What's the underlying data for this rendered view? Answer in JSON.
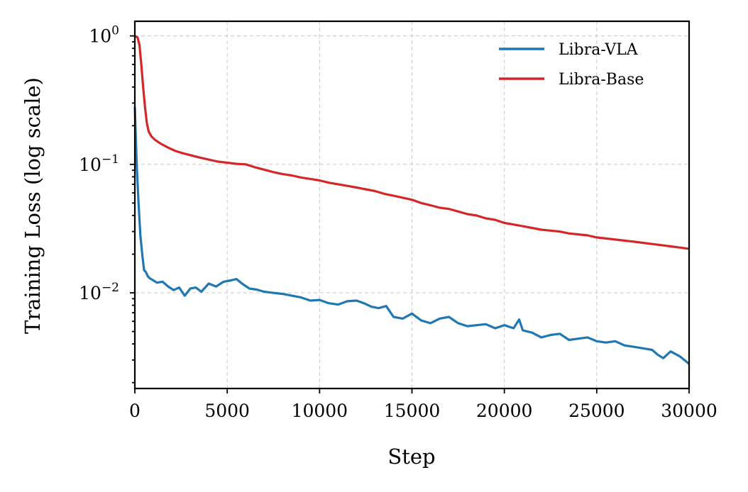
{
  "chart_data": {
    "type": "line",
    "xlabel": "Step",
    "ylabel": "Training Loss (log scale)",
    "xlim": [
      0,
      30000
    ],
    "ylim": [
      0.0018,
      1.3
    ],
    "yscale": "log",
    "grid": true,
    "legend_position": "top-right",
    "x_ticks": [
      0,
      5000,
      10000,
      15000,
      20000,
      25000,
      30000
    ],
    "y_ticks": [
      {
        "value": 1,
        "base": "10",
        "exp": "0"
      },
      {
        "value": 0.1,
        "base": "10",
        "exp": "−1"
      },
      {
        "value": 0.01,
        "base": "10",
        "exp": "−2"
      }
    ],
    "series": [
      {
        "name": "Libra-VLA",
        "color": "#1f77b4",
        "x": [
          0,
          100,
          200,
          300,
          400,
          500,
          600,
          700,
          800,
          1000,
          1200,
          1500,
          1800,
          2100,
          2400,
          2700,
          3000,
          3300,
          3600,
          4000,
          4400,
          4800,
          5200,
          5500,
          5800,
          6200,
          6600,
          7000,
          7500,
          8000,
          8500,
          9000,
          9500,
          10000,
          10500,
          11000,
          11500,
          12000,
          12400,
          12800,
          13200,
          13600,
          14000,
          14500,
          15000,
          15500,
          16000,
          16500,
          17000,
          17500,
          18000,
          18500,
          19000,
          19500,
          20000,
          20500,
          20800,
          21000,
          21500,
          22000,
          22500,
          23000,
          23500,
          24000,
          24500,
          25000,
          25500,
          26000,
          26500,
          27000,
          27500,
          28000,
          28300,
          28600,
          29000,
          29500,
          30000
        ],
        "y": [
          0.28,
          0.1,
          0.05,
          0.028,
          0.02,
          0.015,
          0.0145,
          0.0135,
          0.013,
          0.0125,
          0.012,
          0.0122,
          0.0112,
          0.0105,
          0.011,
          0.0095,
          0.0108,
          0.011,
          0.0102,
          0.0118,
          0.0112,
          0.0122,
          0.0125,
          0.0128,
          0.0118,
          0.0108,
          0.0106,
          0.0102,
          0.01,
          0.0098,
          0.0095,
          0.0092,
          0.0087,
          0.0088,
          0.0083,
          0.0081,
          0.0086,
          0.0087,
          0.0083,
          0.0078,
          0.0076,
          0.0079,
          0.0065,
          0.0063,
          0.0069,
          0.0061,
          0.0058,
          0.0063,
          0.0065,
          0.0058,
          0.0055,
          0.0056,
          0.0057,
          0.0053,
          0.0056,
          0.0053,
          0.0062,
          0.0051,
          0.0049,
          0.0045,
          0.0047,
          0.0048,
          0.0043,
          0.0044,
          0.0045,
          0.0042,
          0.0041,
          0.0042,
          0.0039,
          0.0038,
          0.0037,
          0.0036,
          0.0033,
          0.0031,
          0.0035,
          0.0032,
          0.0028
        ]
      },
      {
        "name": "Libra-Base",
        "color": "#d62728",
        "x": [
          0,
          150,
          250,
          350,
          450,
          550,
          650,
          750,
          900,
          1100,
          1400,
          1800,
          2200,
          2600,
          3000,
          3500,
          4000,
          4500,
          5000,
          5500,
          6000,
          6500,
          7000,
          7500,
          8000,
          8500,
          9000,
          9500,
          10000,
          10500,
          11000,
          11500,
          12000,
          12500,
          13000,
          13500,
          14000,
          14500,
          15000,
          15500,
          16000,
          16500,
          17000,
          17500,
          18000,
          18500,
          19000,
          19500,
          20000,
          20500,
          21000,
          21500,
          22000,
          22500,
          23000,
          23500,
          24000,
          24500,
          25000,
          25500,
          26000,
          26500,
          27000,
          27500,
          28000,
          28500,
          29000,
          29500,
          30000
        ],
        "y": [
          1.0,
          0.97,
          0.85,
          0.6,
          0.4,
          0.28,
          0.21,
          0.18,
          0.165,
          0.155,
          0.145,
          0.135,
          0.127,
          0.122,
          0.118,
          0.113,
          0.109,
          0.105,
          0.103,
          0.101,
          0.1,
          0.095,
          0.091,
          0.087,
          0.084,
          0.082,
          0.079,
          0.077,
          0.075,
          0.072,
          0.07,
          0.068,
          0.066,
          0.064,
          0.062,
          0.059,
          0.057,
          0.055,
          0.053,
          0.05,
          0.048,
          0.046,
          0.045,
          0.043,
          0.041,
          0.04,
          0.038,
          0.037,
          0.035,
          0.034,
          0.033,
          0.032,
          0.031,
          0.0305,
          0.03,
          0.029,
          0.0285,
          0.028,
          0.027,
          0.0265,
          0.026,
          0.0255,
          0.025,
          0.0245,
          0.024,
          0.0235,
          0.023,
          0.0225,
          0.022
        ]
      }
    ]
  }
}
